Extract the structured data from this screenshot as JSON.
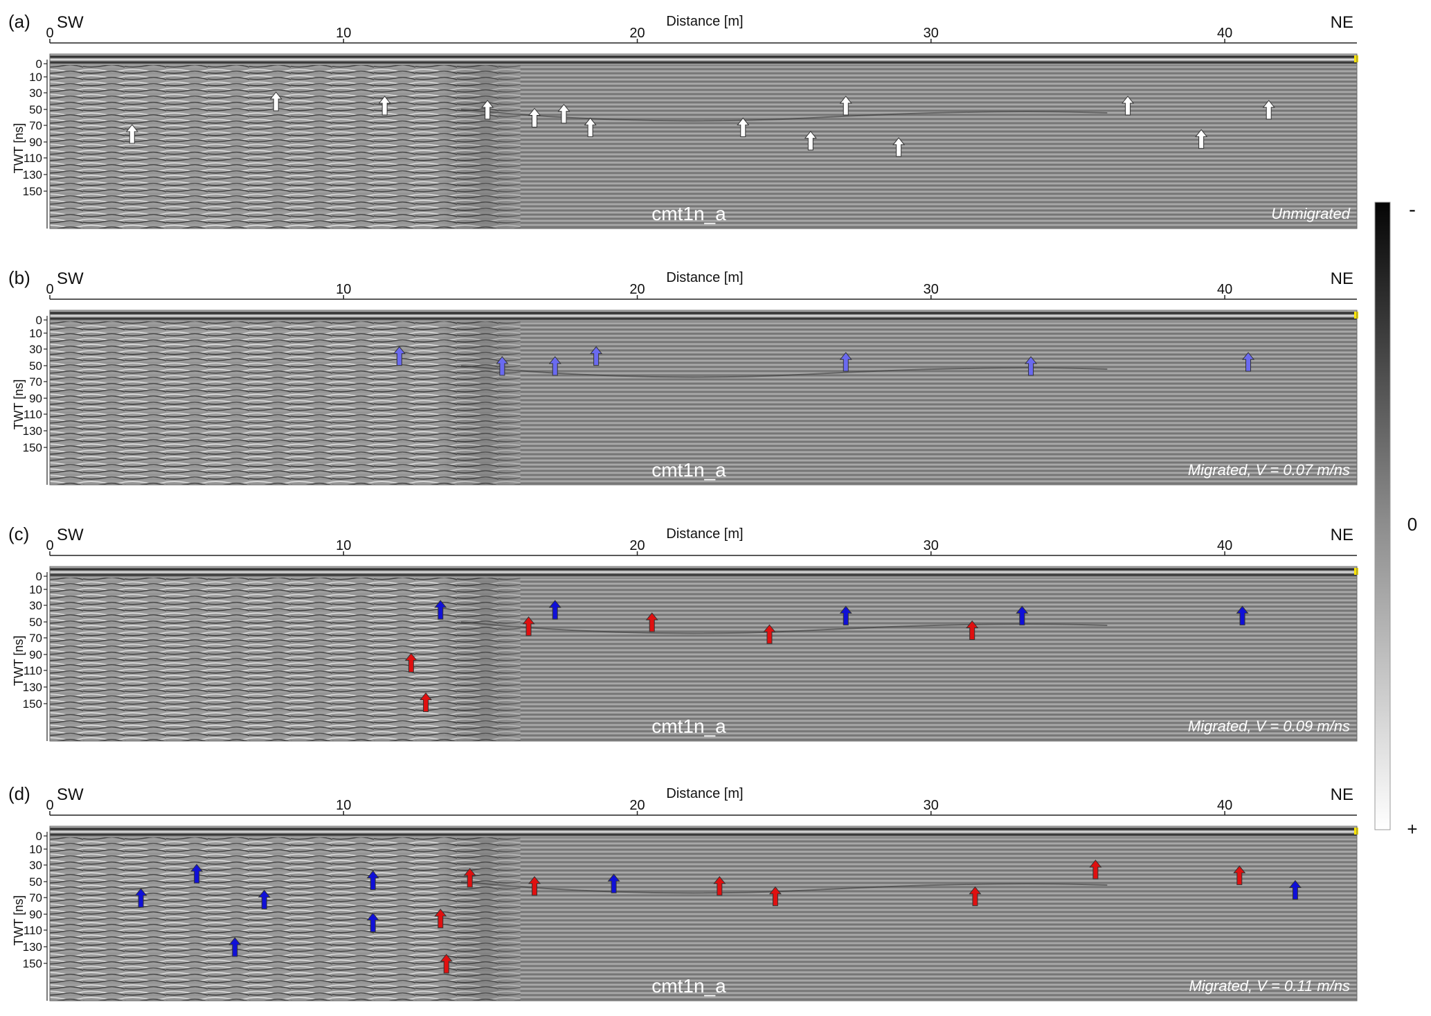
{
  "figure": {
    "xaxis_label": "Distance [m]",
    "yaxis_label": "TWT [ns]",
    "left_direction": "SW",
    "right_direction": "NE",
    "x_ticks": [
      "0",
      "10",
      "20",
      "30",
      "40"
    ],
    "y_ticks": [
      "0",
      "10",
      "30",
      "50",
      "70",
      "90",
      "110",
      "130",
      "150"
    ],
    "profile_name": "cmt1n_a",
    "arrow_colors": {
      "white": "#ffffff",
      "light_blue": "#6a6af0",
      "blue": "#1010d8",
      "red": "#e01010"
    }
  },
  "panels": [
    {
      "letter": "(a)",
      "annotation": "Unmigrated",
      "arrows": [
        {
          "x": 2.8,
          "twt": 80,
          "color": "white"
        },
        {
          "x": 7.7,
          "twt": 40,
          "color": "white"
        },
        {
          "x": 11.4,
          "twt": 45,
          "color": "white"
        },
        {
          "x": 14.9,
          "twt": 50,
          "color": "white"
        },
        {
          "x": 16.5,
          "twt": 60,
          "color": "white"
        },
        {
          "x": 17.5,
          "twt": 55,
          "color": "white"
        },
        {
          "x": 18.4,
          "twt": 72,
          "color": "white"
        },
        {
          "x": 23.6,
          "twt": 72,
          "color": "white"
        },
        {
          "x": 25.9,
          "twt": 88,
          "color": "white"
        },
        {
          "x": 27.1,
          "twt": 45,
          "color": "white"
        },
        {
          "x": 28.9,
          "twt": 96,
          "color": "white"
        },
        {
          "x": 36.7,
          "twt": 45,
          "color": "white"
        },
        {
          "x": 39.2,
          "twt": 86,
          "color": "white"
        },
        {
          "x": 41.5,
          "twt": 50,
          "color": "white"
        }
      ]
    },
    {
      "letter": "(b)",
      "annotation": "Migrated, V = 0.07 m/ns",
      "arrows": [
        {
          "x": 11.9,
          "twt": 38,
          "color": "light_blue"
        },
        {
          "x": 15.4,
          "twt": 50,
          "color": "light_blue"
        },
        {
          "x": 17.2,
          "twt": 50,
          "color": "light_blue"
        },
        {
          "x": 18.6,
          "twt": 38,
          "color": "light_blue"
        },
        {
          "x": 27.1,
          "twt": 45,
          "color": "light_blue"
        },
        {
          "x": 33.4,
          "twt": 50,
          "color": "light_blue"
        },
        {
          "x": 40.8,
          "twt": 45,
          "color": "light_blue"
        }
      ]
    },
    {
      "letter": "(c)",
      "annotation": "Migrated, V = 0.09 m/ns",
      "arrows": [
        {
          "x": 13.3,
          "twt": 35,
          "color": "blue"
        },
        {
          "x": 16.3,
          "twt": 55,
          "color": "red"
        },
        {
          "x": 17.2,
          "twt": 35,
          "color": "blue"
        },
        {
          "x": 20.5,
          "twt": 50,
          "color": "red"
        },
        {
          "x": 24.5,
          "twt": 65,
          "color": "red"
        },
        {
          "x": 27.1,
          "twt": 42,
          "color": "blue"
        },
        {
          "x": 31.4,
          "twt": 60,
          "color": "red"
        },
        {
          "x": 33.1,
          "twt": 42,
          "color": "blue"
        },
        {
          "x": 40.6,
          "twt": 42,
          "color": "blue"
        },
        {
          "x": 12.3,
          "twt": 100,
          "color": "red"
        },
        {
          "x": 12.8,
          "twt": 148,
          "color": "red"
        }
      ]
    },
    {
      "letter": "(d)",
      "annotation": "Migrated, V = 0.11 m/ns",
      "arrows": [
        {
          "x": 3.1,
          "twt": 70,
          "color": "blue"
        },
        {
          "x": 5.0,
          "twt": 40,
          "color": "blue"
        },
        {
          "x": 7.3,
          "twt": 72,
          "color": "blue"
        },
        {
          "x": 11.0,
          "twt": 48,
          "color": "blue"
        },
        {
          "x": 11.0,
          "twt": 100,
          "color": "blue"
        },
        {
          "x": 6.3,
          "twt": 130,
          "color": "blue"
        },
        {
          "x": 13.3,
          "twt": 95,
          "color": "red"
        },
        {
          "x": 13.5,
          "twt": 150,
          "color": "red"
        },
        {
          "x": 14.3,
          "twt": 45,
          "color": "red"
        },
        {
          "x": 16.5,
          "twt": 55,
          "color": "red"
        },
        {
          "x": 19.2,
          "twt": 52,
          "color": "blue"
        },
        {
          "x": 22.8,
          "twt": 55,
          "color": "red"
        },
        {
          "x": 24.7,
          "twt": 68,
          "color": "red"
        },
        {
          "x": 31.5,
          "twt": 68,
          "color": "red"
        },
        {
          "x": 35.6,
          "twt": 35,
          "color": "red"
        },
        {
          "x": 40.5,
          "twt": 42,
          "color": "red"
        },
        {
          "x": 42.4,
          "twt": 60,
          "color": "blue"
        }
      ]
    }
  ],
  "colorbar": {
    "top_label": "-",
    "middle_label": "0",
    "bottom_label": "+"
  }
}
